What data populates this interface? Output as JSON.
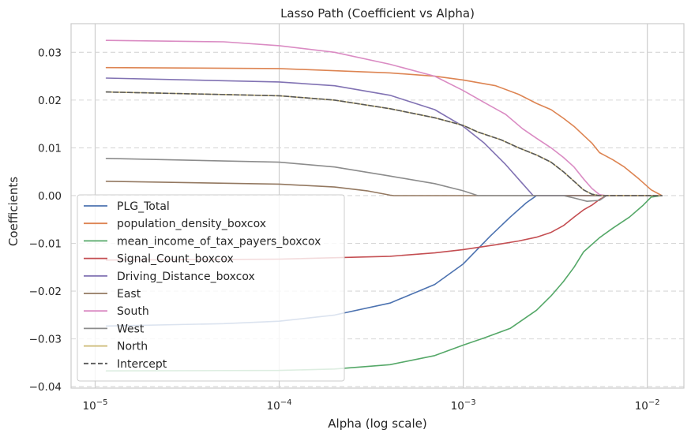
{
  "chart_data": {
    "type": "line",
    "title": "Lasso Path (Coefficient vs Alpha)",
    "xlabel": "Alpha (log scale)",
    "ylabel": "Coefficients",
    "x_scale": "log",
    "xlim": [
      7.4e-06,
      0.0158
    ],
    "ylim": [
      -0.0403,
      0.036
    ],
    "x_ticks": [
      {
        "value": 1e-05,
        "base": "10",
        "exp": "−5"
      },
      {
        "value": 0.0001,
        "base": "10",
        "exp": "−4"
      },
      {
        "value": 0.001,
        "base": "10",
        "exp": "−3"
      },
      {
        "value": 0.01,
        "base": "10",
        "exp": "−2"
      }
    ],
    "y_ticks": [
      {
        "value": 0.03,
        "label": "0.03"
      },
      {
        "value": 0.02,
        "label": "0.02"
      },
      {
        "value": 0.01,
        "label": "0.01"
      },
      {
        "value": 0.0,
        "label": "0.00"
      },
      {
        "value": -0.01,
        "label": "−0.01"
      },
      {
        "value": -0.02,
        "label": "−0.02"
      },
      {
        "value": -0.03,
        "label": "−0.03"
      },
      {
        "value": -0.04,
        "label": "−0.04"
      }
    ],
    "grid": {
      "x": "solid",
      "y": "dashed"
    },
    "legend_position": "lower-left",
    "series": [
      {
        "name": "PLG_Total",
        "color": "#4c72b0",
        "dash": false,
        "points": [
          [
            1.15e-05,
            -0.0273
          ],
          [
            5e-05,
            -0.0268
          ],
          [
            0.0001,
            -0.0263
          ],
          [
            0.0002,
            -0.025
          ],
          [
            0.0004,
            -0.0225
          ],
          [
            0.0007,
            -0.0186
          ],
          [
            0.001,
            -0.0143
          ],
          [
            0.0014,
            -0.0085
          ],
          [
            0.0018,
            -0.0045
          ],
          [
            0.0022,
            -0.0015
          ],
          [
            0.0025,
            0.0
          ],
          [
            0.012,
            0.0
          ]
        ]
      },
      {
        "name": "population_density_boxcox",
        "color": "#dd8452",
        "dash": false,
        "points": [
          [
            1.15e-05,
            0.0268
          ],
          [
            0.0001,
            0.0266
          ],
          [
            0.0004,
            0.0257
          ],
          [
            0.0007,
            0.025
          ],
          [
            0.001,
            0.0242
          ],
          [
            0.0015,
            0.023
          ],
          [
            0.002,
            0.0212
          ],
          [
            0.0025,
            0.0193
          ],
          [
            0.003,
            0.018
          ],
          [
            0.0035,
            0.0162
          ],
          [
            0.004,
            0.0145
          ],
          [
            0.005,
            0.011
          ],
          [
            0.0055,
            0.009
          ],
          [
            0.0065,
            0.0075
          ],
          [
            0.0075,
            0.006
          ],
          [
            0.009,
            0.0035
          ],
          [
            0.0105,
            0.0012
          ],
          [
            0.012,
            0.0
          ]
        ]
      },
      {
        "name": "mean_income_of_tax_payers_boxcox",
        "color": "#55a868",
        "dash": false,
        "points": [
          [
            1.15e-05,
            -0.0367
          ],
          [
            0.0001,
            -0.0366
          ],
          [
            0.0002,
            -0.0363
          ],
          [
            0.0004,
            -0.0354
          ],
          [
            0.0007,
            -0.0335
          ],
          [
            0.001,
            -0.0313
          ],
          [
            0.0013,
            -0.0298
          ],
          [
            0.0018,
            -0.0278
          ],
          [
            0.0025,
            -0.024
          ],
          [
            0.003,
            -0.021
          ],
          [
            0.0035,
            -0.018
          ],
          [
            0.004,
            -0.015
          ],
          [
            0.0045,
            -0.0118
          ],
          [
            0.0055,
            -0.0088
          ],
          [
            0.0065,
            -0.0068
          ],
          [
            0.008,
            -0.0045
          ],
          [
            0.0095,
            -0.002
          ],
          [
            0.0105,
            -0.0003
          ],
          [
            0.012,
            0.0
          ]
        ]
      },
      {
        "name": "Signal_Count_boxcox",
        "color": "#c44e52",
        "dash": false,
        "points": [
          [
            1.15e-05,
            -0.0135
          ],
          [
            0.0001,
            -0.0133
          ],
          [
            0.0004,
            -0.0127
          ],
          [
            0.0007,
            -0.012
          ],
          [
            0.001,
            -0.0113
          ],
          [
            0.0015,
            -0.0103
          ],
          [
            0.002,
            -0.0095
          ],
          [
            0.0025,
            -0.0087
          ],
          [
            0.003,
            -0.0077
          ],
          [
            0.0035,
            -0.0063
          ],
          [
            0.004,
            -0.0045
          ],
          [
            0.0045,
            -0.003
          ],
          [
            0.005,
            -0.002
          ],
          [
            0.0055,
            -0.0008
          ],
          [
            0.006,
            0.0
          ],
          [
            0.012,
            0.0
          ]
        ]
      },
      {
        "name": "Driving_Distance_boxcox",
        "color": "#8172b3",
        "dash": false,
        "points": [
          [
            1.15e-05,
            0.0246
          ],
          [
            0.0001,
            0.0238
          ],
          [
            0.0002,
            0.023
          ],
          [
            0.0004,
            0.021
          ],
          [
            0.0007,
            0.018
          ],
          [
            0.001,
            0.0145
          ],
          [
            0.0013,
            0.011
          ],
          [
            0.0017,
            0.0065
          ],
          [
            0.0021,
            0.0025
          ],
          [
            0.0024,
            0.0
          ],
          [
            0.012,
            0.0
          ]
        ]
      },
      {
        "name": "East",
        "color": "#937860",
        "dash": false,
        "points": [
          [
            1.15e-05,
            0.003
          ],
          [
            0.0001,
            0.0024
          ],
          [
            0.0002,
            0.0018
          ],
          [
            0.0003,
            0.001
          ],
          [
            0.0004,
            0.0001
          ],
          [
            0.00042,
            0.0
          ],
          [
            0.012,
            0.0
          ]
        ]
      },
      {
        "name": "South",
        "color": "#da8bc3",
        "dash": false,
        "points": [
          [
            1.15e-05,
            0.0325
          ],
          [
            5e-05,
            0.0322
          ],
          [
            0.0001,
            0.0314
          ],
          [
            0.0002,
            0.03
          ],
          [
            0.0004,
            0.0275
          ],
          [
            0.0007,
            0.025
          ],
          [
            0.001,
            0.022
          ],
          [
            0.0013,
            0.0195
          ],
          [
            0.0017,
            0.017
          ],
          [
            0.0021,
            0.014
          ],
          [
            0.0025,
            0.012
          ],
          [
            0.003,
            0.01
          ],
          [
            0.0035,
            0.008
          ],
          [
            0.004,
            0.006
          ],
          [
            0.0045,
            0.0035
          ],
          [
            0.005,
            0.0015
          ],
          [
            0.0055,
            0.0002
          ],
          [
            0.006,
            0.0
          ],
          [
            0.012,
            0.0
          ]
        ]
      },
      {
        "name": "West",
        "color": "#8c8c8c",
        "dash": false,
        "points": [
          [
            1.15e-05,
            0.0078
          ],
          [
            0.0001,
            0.007
          ],
          [
            0.0002,
            0.006
          ],
          [
            0.0004,
            0.0041
          ],
          [
            0.0007,
            0.0025
          ],
          [
            0.001,
            0.001
          ],
          [
            0.0012,
            0.0
          ],
          [
            0.0035,
            0.0
          ],
          [
            0.004,
            -0.0005
          ],
          [
            0.0047,
            -0.0012
          ],
          [
            0.0055,
            -0.001
          ],
          [
            0.006,
            0.0
          ],
          [
            0.012,
            0.0
          ]
        ]
      },
      {
        "name": "North",
        "color": "#ccb974",
        "dash": false,
        "points": [
          [
            1.15e-05,
            0.0217
          ],
          [
            0.0001,
            0.0209
          ],
          [
            0.0002,
            0.02
          ],
          [
            0.0004,
            0.0182
          ],
          [
            0.0007,
            0.0163
          ],
          [
            0.001,
            0.0147
          ],
          [
            0.0012,
            0.0133
          ],
          [
            0.0016,
            0.0117
          ],
          [
            0.002,
            0.01
          ],
          [
            0.0025,
            0.0085
          ],
          [
            0.003,
            0.007
          ],
          [
            0.0035,
            0.005
          ],
          [
            0.004,
            0.003
          ],
          [
            0.0045,
            0.0012
          ],
          [
            0.005,
            0.0003
          ],
          [
            0.0055,
            0.0
          ],
          [
            0.012,
            0.0
          ]
        ]
      },
      {
        "name": "Intercept",
        "color": "#595959",
        "dash": true,
        "points": [
          [
            1.15e-05,
            0.0217
          ],
          [
            0.0001,
            0.0209
          ],
          [
            0.0002,
            0.02
          ],
          [
            0.0004,
            0.0182
          ],
          [
            0.0007,
            0.0163
          ],
          [
            0.001,
            0.0147
          ],
          [
            0.0012,
            0.0133
          ],
          [
            0.0016,
            0.0117
          ],
          [
            0.002,
            0.01
          ],
          [
            0.0025,
            0.0085
          ],
          [
            0.003,
            0.007
          ],
          [
            0.0035,
            0.005
          ],
          [
            0.004,
            0.003
          ],
          [
            0.0045,
            0.0012
          ],
          [
            0.005,
            0.0003
          ],
          [
            0.0055,
            0.0
          ],
          [
            0.012,
            0.0
          ]
        ]
      }
    ]
  }
}
